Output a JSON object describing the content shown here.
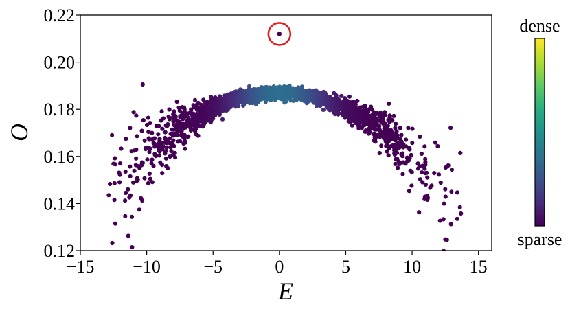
{
  "chart_data": {
    "type": "scatter",
    "title": "",
    "xlabel": "E",
    "ylabel": "O",
    "xlim": [
      -15,
      16
    ],
    "ylim": [
      0.12,
      0.22
    ],
    "xticks": [
      -15,
      -10,
      -5,
      0,
      5,
      10,
      15
    ],
    "xtick_labels": [
      "−15",
      "−10",
      "−5",
      "0",
      "5",
      "10",
      "15"
    ],
    "yticks": [
      0.12,
      0.14,
      0.16,
      0.18,
      0.2,
      0.22
    ],
    "ytick_labels": [
      "0.12",
      "0.14",
      "0.16",
      "0.18",
      "0.20",
      "0.22"
    ],
    "grid": false,
    "trend": {
      "description": "dense arc of points, peak near O=0.187 at E=0, falling to ~0.16 at |E|=10",
      "peak": {
        "x": 0,
        "y": 0.187
      },
      "x_range": [
        -13.0,
        14.3
      ]
    },
    "outlier": {
      "x": 0.0,
      "y": 0.212,
      "highlighted": true,
      "highlight_color": "#e41a1c"
    },
    "colorbar": {
      "top_label": "dense",
      "bottom_label": "sparse",
      "colormap": "viridis",
      "colors": [
        "#440154",
        "#472d7b",
        "#3b528b",
        "#2c728e",
        "#21918c",
        "#28ae80",
        "#5ec962",
        "#addc30",
        "#fde725"
      ]
    },
    "point_color_sparse": "#440154",
    "point_color_dense": "#fde725"
  }
}
